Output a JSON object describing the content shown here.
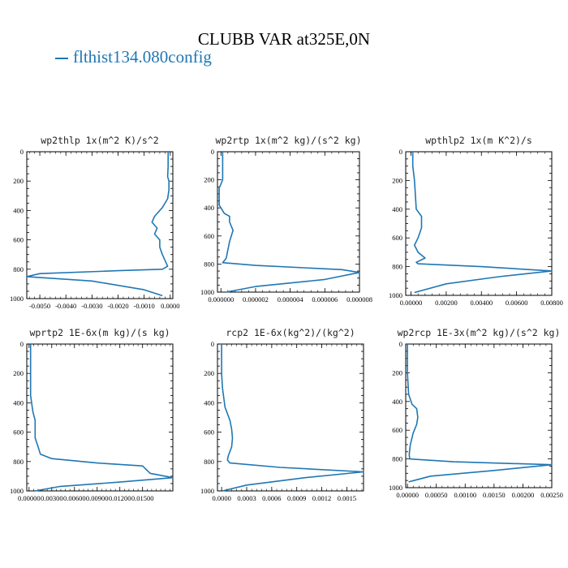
{
  "page_title": "CLUBB VAR at325E,0N",
  "legend": {
    "label": "flthist134.080config",
    "color": "#1f77b4"
  },
  "chart_data": [
    {
      "type": "line",
      "title": "wp2thlp  1x(m^2 K)/s^2",
      "xlim": [
        -0.0055,
        0.0001
      ],
      "ylim": [
        1000,
        0
      ],
      "xticks": [
        -0.005,
        -0.004,
        -0.003,
        -0.002,
        -0.001,
        0.0
      ],
      "xtick_labels": [
        "-0.0050",
        "-0.0040",
        "-0.0030",
        "-0.0020",
        "-0.0010",
        "0.0000"
      ],
      "yticks": [
        0,
        200,
        400,
        600,
        800,
        1000
      ],
      "ytick_labels": [
        "0",
        "200",
        "400",
        "600",
        "800",
        "1000"
      ],
      "series": [
        {
          "x": [
            -8e-05,
            -8e-05,
            -0.0001,
            -5e-05,
            -5e-05,
            -0.0001,
            -0.0003,
            -0.0006,
            -0.0007,
            -0.0005,
            -0.0006,
            -0.0004,
            -0.0004,
            -0.0003,
            -0.0002,
            -0.0001,
            -0.0003,
            -0.002,
            -0.005,
            -0.0055,
            -0.003,
            -0.001,
            -0.0003
          ],
          "y": [
            0,
            100,
            170,
            200,
            260,
            320,
            380,
            440,
            480,
            520,
            560,
            600,
            650,
            700,
            740,
            780,
            800,
            810,
            830,
            850,
            880,
            940,
            980
          ]
        }
      ]
    },
    {
      "type": "line",
      "title": "wp2rtp  1x(m^2 kg)/(s^2 kg)",
      "xlim": [
        -2e-07,
        8e-06
      ],
      "ylim": [
        1000,
        0
      ],
      "xticks": [
        0,
        2e-06,
        4e-06,
        6e-06,
        8e-06
      ],
      "xtick_labels": [
        "0.000000",
        "0.000002",
        "0.000004",
        "0.000006",
        "0.000008"
      ],
      "yticks": [
        0,
        200,
        400,
        600,
        800,
        1000
      ],
      "ytick_labels": [
        "0",
        "200",
        "400",
        "600",
        "800",
        "1000"
      ],
      "series": [
        {
          "x": [
            1e-07,
            1e-07,
            1e-07,
            -1e-07,
            -1e-07,
            2e-07,
            5e-07,
            5e-07,
            7e-07,
            5e-07,
            4e-07,
            3e-07,
            1e-07,
            2e-06,
            7e-06,
            8e-06,
            6e-06,
            2e-06,
            3e-07
          ],
          "y": [
            0,
            100,
            200,
            260,
            380,
            440,
            460,
            500,
            560,
            640,
            700,
            760,
            790,
            810,
            840,
            860,
            910,
            960,
            1000
          ]
        }
      ]
    },
    {
      "type": "line",
      "title": "wpthlp2  1x(m K^2)/s",
      "xlim": [
        -0.0003,
        0.008
      ],
      "ylim": [
        1000,
        0
      ],
      "xticks": [
        0,
        0.002,
        0.004,
        0.006,
        0.008
      ],
      "xtick_labels": [
        "0.00000",
        "0.00200",
        "0.00400",
        "0.00600",
        "0.00800"
      ],
      "yticks": [
        0,
        200,
        400,
        600,
        800,
        1000
      ],
      "ytick_labels": [
        "0",
        "200",
        "400",
        "600",
        "800",
        "1000"
      ],
      "series": [
        {
          "x": [
            0.0001,
            0.0001,
            0.0002,
            0.0003,
            0.0006,
            0.0006,
            0.0004,
            0.0002,
            0.0004,
            0.0008,
            0.0003,
            0.0004,
            0.004,
            0.008,
            0.005,
            0.002,
            0.0002
          ],
          "y": [
            0,
            100,
            200,
            400,
            450,
            530,
            600,
            650,
            700,
            740,
            770,
            780,
            800,
            830,
            870,
            920,
            980
          ]
        }
      ]
    },
    {
      "type": "line",
      "title": "wprtp2  1E-6x(m kg)/(s kg)",
      "xlim": [
        -0.0003,
        0.019
      ],
      "ylim": [
        1000,
        0
      ],
      "xticks": [
        0,
        0.003,
        0.006,
        0.009,
        0.012,
        0.015
      ],
      "xtick_labels": [
        "0.00000",
        "0.00300",
        "0.00600",
        "0.00900",
        "0.01200",
        "0.01500"
      ],
      "yticks": [
        0,
        200,
        400,
        600,
        800,
        1000
      ],
      "ytick_labels": [
        "0",
        "200",
        "400",
        "600",
        "800",
        "1000"
      ],
      "series": [
        {
          "x": [
            0.0002,
            0.0002,
            0.0002,
            0.0005,
            0.0008,
            0.0008,
            0.0008,
            0.0012,
            0.0015,
            0.003,
            0.009,
            0.015,
            0.016,
            0.019,
            0.012,
            0.004,
            0.0008
          ],
          "y": [
            0,
            100,
            350,
            460,
            520,
            580,
            640,
            700,
            750,
            780,
            810,
            830,
            880,
            910,
            940,
            970,
            1000
          ]
        }
      ]
    },
    {
      "type": "line",
      "title": "rcp2  1E-6x(kg^2)/(kg^2)",
      "xlim": [
        -5e-05,
        0.0017
      ],
      "ylim": [
        1000,
        0
      ],
      "xticks": [
        0,
        0.0003,
        0.0006,
        0.0009,
        0.0012,
        0.0015
      ],
      "xtick_labels": [
        "0.0000",
        "0.0003",
        "0.0006",
        "0.0009",
        "0.0012",
        "0.0015"
      ],
      "yticks": [
        0,
        200,
        400,
        600,
        800,
        1000
      ],
      "ytick_labels": [
        "0",
        "200",
        "400",
        "600",
        "800",
        "1000"
      ],
      "series": [
        {
          "x": [
            0,
            0,
            1e-05,
            4e-05,
            0.0001,
            0.00012,
            0.00013,
            0.00012,
            8e-05,
            7e-05,
            0.0001,
            0.0007,
            0.0017,
            0.001,
            0.0003,
            1e-05
          ],
          "y": [
            0,
            200,
            300,
            430,
            520,
            580,
            640,
            700,
            760,
            790,
            810,
            840,
            870,
            910,
            960,
            1000
          ]
        }
      ]
    },
    {
      "type": "line",
      "title": "wp2rcp  1E-3x(m^2 kg)/(s^2 kg)",
      "xlim": [
        -3e-05,
        0.0025
      ],
      "ylim": [
        1000,
        0
      ],
      "xticks": [
        0,
        0.0005,
        0.001,
        0.0015,
        0.002,
        0.0025
      ],
      "xtick_labels": [
        "0.00000",
        "0.00050",
        "0.00100",
        "0.00150",
        "0.00200",
        "0.00250"
      ],
      "yticks": [
        0,
        200,
        400,
        600,
        800,
        1000
      ],
      "ytick_labels": [
        "0",
        "200",
        "400",
        "600",
        "800",
        "1000"
      ],
      "series": [
        {
          "x": [
            0,
            0,
            2e-05,
            8e-05,
            0.00016,
            0.00018,
            0.00016,
            0.0001,
            5e-05,
            3e-05,
            4e-05,
            0.0008,
            0.0025,
            0.0015,
            0.0004,
            2e-05
          ],
          "y": [
            0,
            200,
            350,
            420,
            450,
            510,
            560,
            620,
            700,
            770,
            800,
            820,
            840,
            880,
            920,
            960
          ]
        }
      ]
    }
  ]
}
